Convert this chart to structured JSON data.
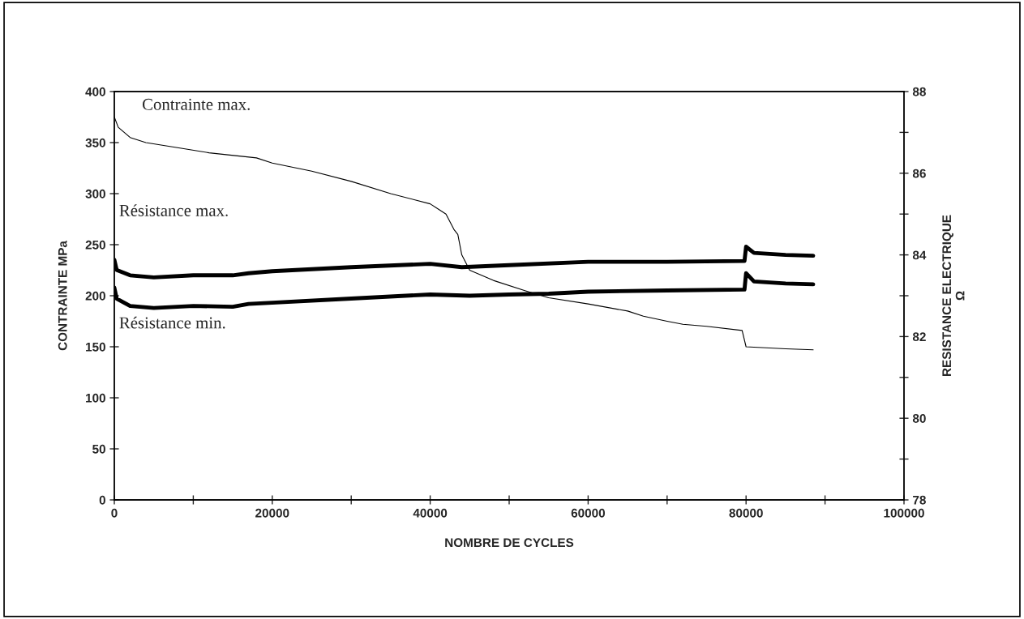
{
  "chart_data": {
    "type": "line",
    "xlabel": "NOMBRE DE CYCLES",
    "ylabel": "CONTRAINTE MPa",
    "y2label": "RESISTANCE ELECTRIQUE\nΩ",
    "xlim": [
      0,
      100000
    ],
    "xticks": [
      0,
      {
        "value": 10000,
        "label": null
      },
      20000,
      {
        "value": 30000,
        "label": null
      },
      40000,
      {
        "value": 50000,
        "label": null
      },
      60000,
      {
        "value": 70000,
        "label": null
      },
      80000,
      {
        "value": 90000,
        "label": null
      },
      100000
    ],
    "ylim": [
      0,
      400
    ],
    "yticks": [
      0,
      50,
      100,
      150,
      200,
      250,
      300,
      350,
      400
    ],
    "y2lim": [
      78,
      88
    ],
    "y2ticks": [
      78,
      {
        "value": 79,
        "label": null
      },
      80,
      {
        "value": 81,
        "label": null
      },
      82,
      {
        "value": 83,
        "label": null
      },
      84,
      {
        "value": 85,
        "label": null
      },
      86,
      {
        "value": 87,
        "label": null
      },
      88
    ],
    "grid": false,
    "legend": false,
    "marker": "none",
    "line_style": "solid",
    "series": [
      {
        "name": "Contrainte max.",
        "color": "#000000",
        "x": [
          0,
          500,
          2000,
          4000,
          8000,
          12000,
          18000,
          20000,
          25000,
          30000,
          35000,
          40000,
          42000,
          43000,
          43500,
          44000,
          45000,
          48000,
          52000,
          55000,
          60000,
          65000,
          67000,
          70000,
          72000,
          75000,
          79500,
          80000,
          85000,
          88500
        ],
        "values": [
          375,
          365,
          355,
          350,
          345,
          340,
          335,
          330,
          322,
          312,
          300,
          290,
          280,
          265,
          260,
          240,
          225,
          215,
          205,
          198,
          192,
          185,
          180,
          175,
          172,
          170,
          166,
          150,
          148,
          147
        ]
      },
      {
        "name": "Résistance max.",
        "color": "#000000",
        "axis": "y2",
        "x": [
          0,
          300,
          2000,
          5000,
          10000,
          15000,
          17000,
          20000,
          30000,
          40000,
          44000,
          50000,
          60000,
          70000,
          79800,
          80000,
          81000,
          85000,
          88500
        ],
        "values": [
          83.88,
          83.63,
          83.5,
          83.45,
          83.5,
          83.5,
          83.55,
          83.6,
          83.7,
          83.78,
          83.7,
          83.75,
          83.83,
          83.83,
          83.85,
          84.2,
          84.05,
          84.0,
          83.98
        ]
      },
      {
        "name": "Résistance min.",
        "color": "#000000",
        "axis": "y2",
        "x": [
          0,
          300,
          2000,
          5000,
          10000,
          15000,
          17000,
          20000,
          30000,
          40000,
          45000,
          50000,
          55000,
          60000,
          70000,
          79800,
          80000,
          81000,
          85000,
          88500
        ],
        "values": [
          83.2,
          82.93,
          82.75,
          82.7,
          82.75,
          82.73,
          82.8,
          82.83,
          82.93,
          83.03,
          83.0,
          83.03,
          83.05,
          83.1,
          83.13,
          83.15,
          83.55,
          83.35,
          83.3,
          83.28
        ]
      }
    ]
  }
}
